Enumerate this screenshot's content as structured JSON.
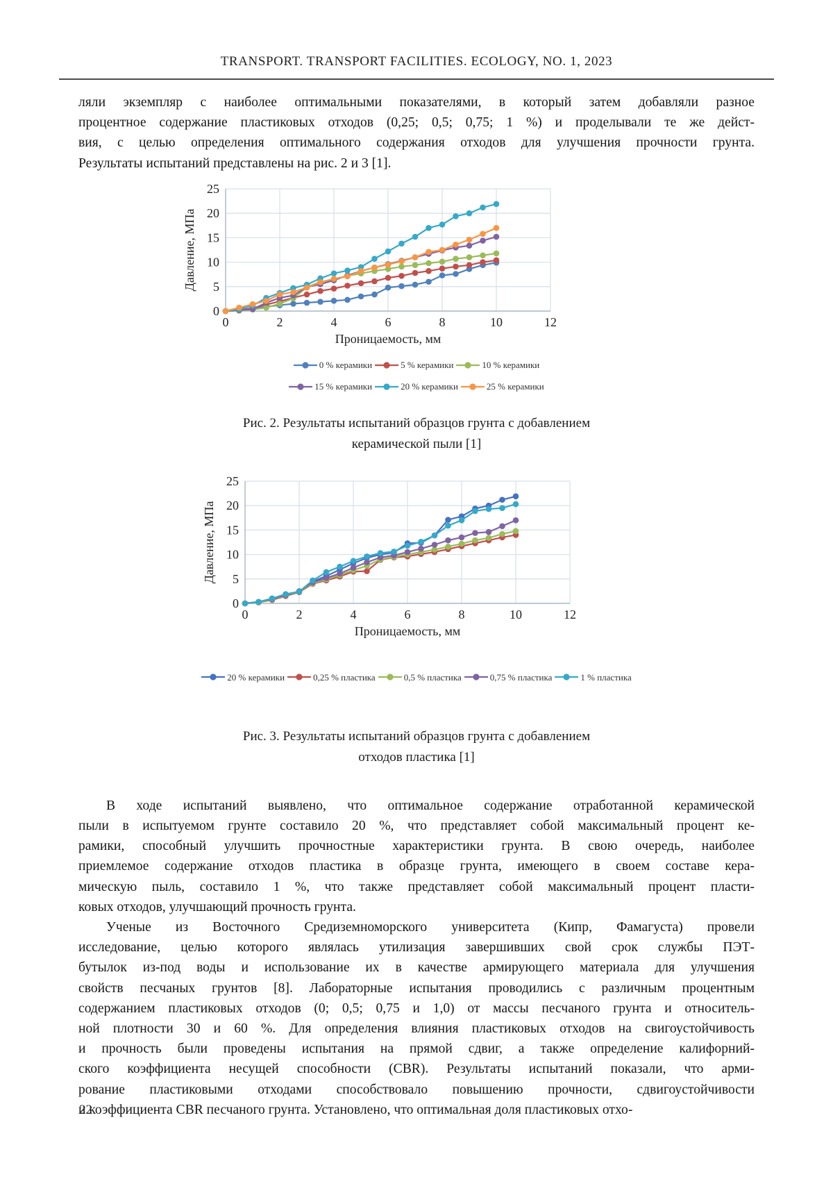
{
  "header": {
    "journal_title": "TRANSPORT. TRANSPORT FACILITIES. ECOLOGY, NO. 1, 2023"
  },
  "paragraphs": [
    {
      "indent_first": false,
      "lines": [
        "ляли экземпляр с наиболее оптимальными показателями, в который затем добавляли разное",
        "процентное содержание пластиковых отходов (0,25; 0,5; 0,75; 1 %) и проделывали те же дейст-",
        "вия, с целью определения оптимального содержания отходов для улучшения прочности грунта.",
        "Результаты испытаний представлены на рис. 2 и 3 [1]."
      ]
    },
    {
      "indent_first": true,
      "lines": [
        "В ходе испытаний выявлено, что оптимальное содержание отработанной керамической",
        "пыли в испытуемом грунте составило 20 %, что представляет собой максимальный процент ке-",
        "рамики, способный улучшить прочностные характеристики грунта. В свою очередь, наиболее",
        "приемлемое содержание отходов пластика в образце грунта, имеющего в своем составе кера-",
        "мическую пыль, составило 1 %, что также представляет собой максимальный процент пласти-",
        "ковых отходов, улучшающий прочность грунта."
      ]
    },
    {
      "indent_first": true,
      "lines": [
        "Ученые из Восточного Средиземноморского университета (Кипр, Фамагуста) провели",
        "исследование, целью которого являлась утилизация завершивших свой срок службы ПЭТ-",
        "бутылок из-под воды и использование их в качестве армирующего материала для улучшения",
        "свойств песчаных грунтов [8]. Лабораторные испытания проводились с различным процентным",
        "содержанием пластиковых отходов (0; 0,5; 0,75 и 1,0) от массы песчаного грунта и относитель-",
        "ной плотности 30 и 60 %. Для определения влияния пластиковых отходов на свигоустойчивость",
        "и прочность были проведены испытания на прямой сдвиг, а также определение калифорний-",
        "ского коэффициента несущей способности (CBR). Результаты испытаний показали, что арми-",
        "рование пластиковыми отходами способствовало повышению прочности, сдвигоустойчивости",
        "и коэффициента CBR песчаного грунта. Установлено, что оптимальная доля пластиковых отхо-"
      ]
    }
  ],
  "figures": [
    {
      "caption_lines": [
        "Рис. 2. Результаты испытаний образцов грунта с добавлением",
        "керамической пыли [1]"
      ]
    },
    {
      "caption_lines": [
        "Рис. 3. Результаты испытаний образцов грунта с добавлением",
        "отходов пластика [1]"
      ]
    }
  ],
  "chart_data": [
    {
      "type": "line",
      "title": "",
      "xlabel": "Проницаемость, мм",
      "ylabel": "Давление, МПа",
      "xlim": [
        0,
        12
      ],
      "ylim": [
        0,
        25
      ],
      "xticks": [
        0,
        2,
        4,
        6,
        8,
        10,
        12
      ],
      "yticks": [
        0,
        5,
        10,
        15,
        20,
        25
      ],
      "grid": true,
      "legend_position": "bottom",
      "x": [
        0,
        0.5,
        1,
        1.5,
        2,
        2.5,
        3,
        3.5,
        4,
        4.5,
        5,
        5.5,
        6,
        6.5,
        7,
        7.5,
        8,
        8.5,
        9,
        9.5,
        10
      ],
      "series": [
        {
          "name": "0 % керамики",
          "color": "#4F81BD",
          "values": [
            0,
            0.1,
            0.4,
            0.9,
            1.2,
            1.5,
            1.7,
            1.9,
            2.1,
            2.3,
            3.0,
            3.4,
            4.8,
            5.1,
            5.4,
            6.0,
            7.3,
            7.6,
            8.6,
            9.4,
            9.9
          ]
        },
        {
          "name": "5 % керамики",
          "color": "#C0504D",
          "values": [
            0,
            0.2,
            0.6,
            1.3,
            2.0,
            2.7,
            3.4,
            4.1,
            4.6,
            5.2,
            5.7,
            6.1,
            6.8,
            7.2,
            7.8,
            8.2,
            8.7,
            9.1,
            9.4,
            10.0,
            10.4
          ]
        },
        {
          "name": "10 % керамики",
          "color": "#9BBB59",
          "values": [
            0,
            0.1,
            0.3,
            0.7,
            1.5,
            2.6,
            4.9,
            6.0,
            6.4,
            7.2,
            7.7,
            8.2,
            8.6,
            9.1,
            9.4,
            9.8,
            10.1,
            10.7,
            11.0,
            11.4,
            11.8
          ]
        },
        {
          "name": "15 % керамики",
          "color": "#8064A2",
          "values": [
            0,
            0.2,
            0.4,
            1.7,
            2.7,
            3.2,
            4.9,
            5.5,
            6.3,
            7.3,
            8.2,
            8.9,
            9.6,
            10.3,
            11.0,
            11.7,
            12.4,
            13.0,
            13.4,
            14.4,
            15.2
          ]
        },
        {
          "name": "20 % керамики",
          "color": "#36A9C9",
          "values": [
            0,
            0.4,
            1.1,
            2.7,
            3.7,
            4.7,
            5.4,
            6.7,
            7.7,
            8.3,
            9.0,
            10.7,
            12.2,
            13.8,
            15.2,
            17.0,
            17.7,
            19.4,
            20.0,
            21.2,
            21.9
          ]
        },
        {
          "name": "25 % керамики",
          "color": "#F79646",
          "values": [
            0,
            0.7,
            1.4,
            2.1,
            3.4,
            3.9,
            4.8,
            5.9,
            6.6,
            7.1,
            8.2,
            8.9,
            9.5,
            10.2,
            11.0,
            12.1,
            12.5,
            13.6,
            14.6,
            15.8,
            17.0
          ]
        }
      ]
    },
    {
      "type": "line",
      "title": "",
      "xlabel": "Проницаемость, мм",
      "ylabel": "Давление, МПа",
      "xlim": [
        0,
        12
      ],
      "ylim": [
        0,
        25
      ],
      "xticks": [
        0,
        2,
        4,
        6,
        8,
        10,
        12
      ],
      "yticks": [
        0,
        5,
        10,
        15,
        20,
        25
      ],
      "grid": true,
      "legend_position": "bottom",
      "x": [
        0,
        0.5,
        1,
        1.5,
        2,
        2.5,
        3,
        3.5,
        4,
        4.5,
        5,
        5.5,
        6,
        6.5,
        7,
        7.5,
        8,
        8.5,
        9,
        9.5,
        10
      ],
      "series": [
        {
          "name": "20 % керамики",
          "color": "#4472C4",
          "values": [
            0,
            0.3,
            1.0,
            1.8,
            2.4,
            4.5,
            5.6,
            6.9,
            8.2,
            9.3,
            10.0,
            10.4,
            12.3,
            12.4,
            13.9,
            17.1,
            17.8,
            19.4,
            20.0,
            21.2,
            21.9
          ]
        },
        {
          "name": "0,25 % пластика",
          "color": "#C0504D",
          "values": [
            0,
            0.2,
            0.7,
            1.5,
            2.3,
            4.0,
            4.7,
            5.5,
            6.5,
            6.6,
            8.9,
            9.4,
            9.6,
            10.1,
            10.5,
            11.1,
            11.7,
            12.3,
            12.9,
            13.5,
            14.0
          ]
        },
        {
          "name": "0,5 % пластика",
          "color": "#9BBB59",
          "values": [
            0,
            0.2,
            0.8,
            1.6,
            2.4,
            4.1,
            4.9,
            5.8,
            6.8,
            7.7,
            9.0,
            9.5,
            10.0,
            10.5,
            11.0,
            11.6,
            12.2,
            12.9,
            13.4,
            14.2,
            14.8
          ]
        },
        {
          "name": "0,75 % пластика",
          "color": "#8064A2",
          "values": [
            0,
            0.3,
            0.9,
            1.7,
            2.5,
            4.3,
            5.2,
            6.1,
            7.3,
            8.4,
            9.4,
            9.8,
            10.5,
            11.2,
            12.0,
            12.9,
            13.5,
            14.4,
            14.6,
            15.8,
            17.0
          ]
        },
        {
          "name": "1 % пластика",
          "color": "#36A9C9",
          "values": [
            0,
            0.3,
            1.0,
            1.9,
            2.4,
            4.7,
            6.4,
            7.5,
            8.7,
            9.6,
            10.3,
            10.6,
            11.8,
            12.6,
            13.9,
            15.9,
            17.0,
            18.9,
            19.3,
            19.5,
            20.3
          ]
        }
      ]
    }
  ],
  "page_number": "22"
}
